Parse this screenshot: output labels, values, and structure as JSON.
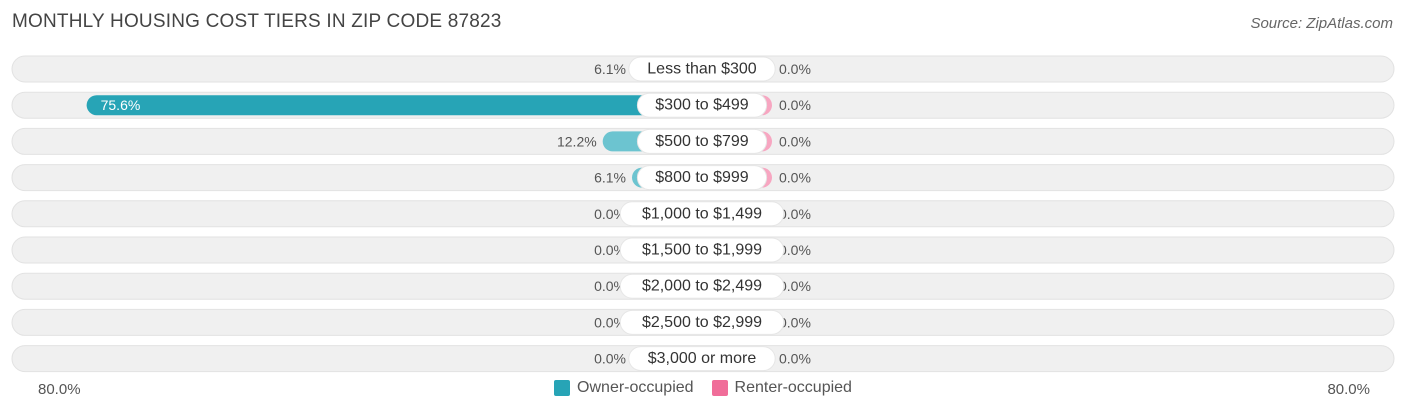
{
  "title": "MONTHLY HOUSING COST TIERS IN ZIP CODE 87823",
  "source": "Source: ZipAtlas.com",
  "axis": {
    "left_label": "80.0%",
    "right_label": "80.0%"
  },
  "legend": {
    "owner_label": "Owner-occupied",
    "renter_label": "Renter-occupied"
  },
  "colors": {
    "owner": "#6cc4d0",
    "owner_highlight": "#27a4b6",
    "renter": "#f7a6c1",
    "renter_legend": "#f06d99",
    "track": "#f0f0f0"
  },
  "chart_data": {
    "type": "bar",
    "orientation": "horizontal-diverging",
    "categories": [
      "Less than $300",
      "$300 to $499",
      "$500 to $799",
      "$800 to $999",
      "$1,000 to $1,499",
      "$1,500 to $1,999",
      "$2,000 to $2,499",
      "$2,500 to $2,999",
      "$3,000 or more"
    ],
    "series": [
      {
        "name": "Owner-occupied",
        "values": [
          6.1,
          75.6,
          12.2,
          6.1,
          0.0,
          0.0,
          0.0,
          0.0,
          0.0
        ],
        "labels": [
          "6.1%",
          "75.6%",
          "12.2%",
          "6.1%",
          "0.0%",
          "0.0%",
          "0.0%",
          "0.0%",
          "0.0%"
        ]
      },
      {
        "name": "Renter-occupied",
        "values": [
          0.0,
          0.0,
          0.0,
          0.0,
          0.0,
          0.0,
          0.0,
          0.0,
          0.0
        ],
        "labels": [
          "0.0%",
          "0.0%",
          "0.0%",
          "0.0%",
          "0.0%",
          "0.0%",
          "0.0%",
          "0.0%",
          "0.0%"
        ]
      }
    ],
    "xlim": [
      -80,
      80
    ],
    "legend_position": "bottom-center"
  }
}
